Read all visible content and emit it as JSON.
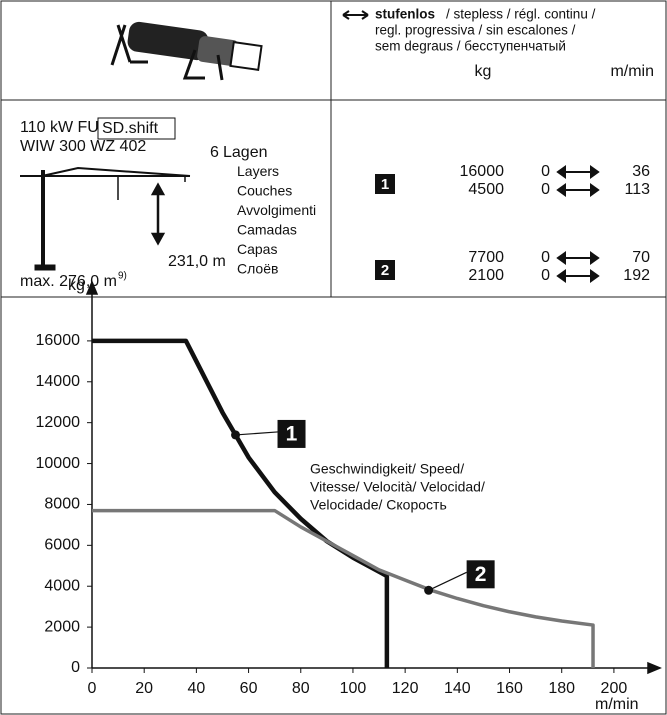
{
  "header": {
    "speed_label": "stufenlos",
    "speed_desc": [
      "/ stepless / régl. continu /",
      "regl. progressiva / sin escalones /",
      "sem degraus / бесступенчатый"
    ],
    "unit_load": "kg",
    "unit_speed": "m/min"
  },
  "spec": {
    "power": "110 kW FU",
    "mode": "SD.shift",
    "model": "WIW 300 WZ 402",
    "layer_count": "6",
    "layers": [
      "Lagen",
      "Layers",
      "Couches",
      "Avvolgimenti",
      "Camadas",
      "Capas",
      "Слоёв"
    ],
    "height": "231,0 m",
    "max": "max. 276,0 m",
    "footnote": "9)"
  },
  "gears": [
    {
      "label": "1",
      "rows": [
        {
          "load": 16000,
          "speed_min": 0,
          "speed_max": 36
        },
        {
          "load": 4500,
          "speed_min": 0,
          "speed_max": 113
        }
      ]
    },
    {
      "label": "2",
      "rows": [
        {
          "load": 7700,
          "speed_min": 0,
          "speed_max": 70
        },
        {
          "load": 2100,
          "speed_min": 0,
          "speed_max": 192
        }
      ]
    }
  ],
  "chart_data": {
    "type": "line",
    "y_label": "kg",
    "x_label": "m/min",
    "annotation": [
      "Geschwindigkeit/ Speed/",
      "Vitesse/ Velocità/ Velocidad/",
      "Velocidade/ Скорость"
    ],
    "xlim": [
      0,
      210
    ],
    "ylim": [
      0,
      18000
    ],
    "xticks": [
      0,
      20,
      40,
      60,
      80,
      100,
      120,
      140,
      160,
      180,
      200
    ],
    "yticks": [
      0,
      2000,
      4000,
      6000,
      8000,
      10000,
      12000,
      14000,
      16000
    ],
    "series": [
      {
        "name": "1",
        "color": "#111111",
        "x": [
          0,
          36,
          40,
          50,
          55,
          60,
          70,
          80,
          90,
          100,
          113,
          113
        ],
        "values": [
          16000,
          16000,
          15000,
          12500,
          11400,
          10300,
          8600,
          7300,
          6200,
          5400,
          4500,
          0
        ],
        "marker": {
          "x": 55,
          "y": 11400
        }
      },
      {
        "name": "2",
        "color": "#777777",
        "x": [
          0,
          70,
          80,
          90,
          100,
          110,
          120,
          130,
          140,
          150,
          160,
          170,
          180,
          192,
          192
        ],
        "values": [
          7700,
          7700,
          6900,
          6200,
          5500,
          4800,
          4300,
          3800,
          3400,
          3050,
          2750,
          2500,
          2300,
          2100,
          0
        ],
        "marker": {
          "x": 129,
          "y": 3800
        }
      }
    ]
  }
}
